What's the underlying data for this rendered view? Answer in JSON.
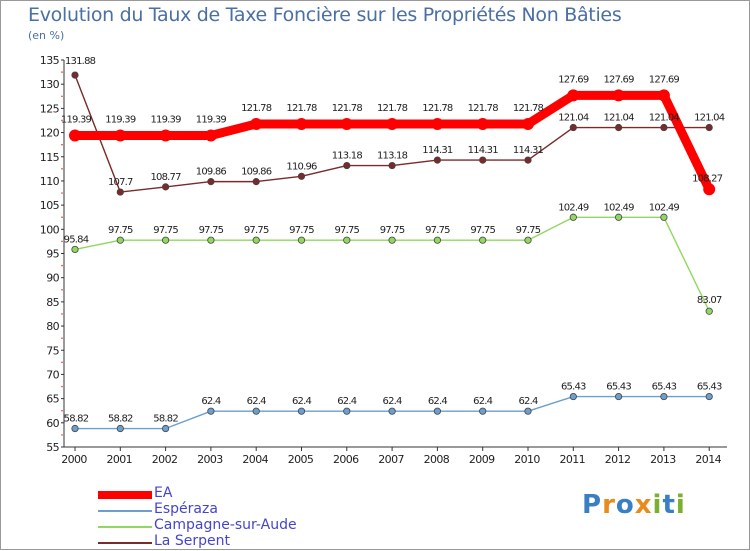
{
  "page": {
    "title": "Evolution du Taux de Taxe Foncière sur les Propriétés Non Bâties",
    "unit": "(en %)",
    "logo_letters": [
      {
        "ch": "P",
        "color": "#3a7fc4"
      },
      {
        "ch": "r",
        "color": "#e98a1d"
      },
      {
        "ch": "o",
        "color": "#3a7fc4"
      },
      {
        "ch": "x",
        "color": "#e98a1d"
      },
      {
        "ch": "i",
        "color": "#7ab030"
      },
      {
        "ch": "t",
        "color": "#3a7fc4"
      },
      {
        "ch": "i",
        "color": "#7ab030"
      }
    ]
  },
  "chart_data": {
    "type": "line",
    "title": "Evolution du Taux de Taxe Foncière sur les Propriétés Non Bâties",
    "ylabel": "(en %)",
    "xlabel": "",
    "ylim": [
      55,
      135
    ],
    "yticks": [
      "55",
      "60",
      "65",
      "70",
      "75",
      "80",
      "85",
      "90",
      "95",
      "100",
      "105",
      "110",
      "115",
      "120",
      "125",
      "130",
      "135"
    ],
    "categories": [
      "2000",
      "2001",
      "2002",
      "2003",
      "2004",
      "2005",
      "2006",
      "2007",
      "2008",
      "2009",
      "2010",
      "2011",
      "2012",
      "2013",
      "2014"
    ],
    "series": [
      {
        "name": "EA",
        "color": "#ff0000",
        "values": [
          119.39,
          119.39,
          119.39,
          119.39,
          121.78,
          121.78,
          121.78,
          121.78,
          121.78,
          121.78,
          121.78,
          127.69,
          127.69,
          127.69,
          108.27
        ],
        "labels": [
          "119.39",
          "119.39",
          "119.39",
          "119.39",
          "121.78",
          "121.78",
          "121.78",
          "121.78",
          "121.78",
          "121.78",
          "121.78",
          "127.69",
          "127.69",
          "127.69",
          "108.27"
        ]
      },
      {
        "name": "Espéraza",
        "color": "#6a9fcf",
        "values": [
          58.82,
          58.82,
          58.82,
          62.4,
          62.4,
          62.4,
          62.4,
          62.4,
          62.4,
          62.4,
          62.4,
          65.43,
          65.43,
          65.43,
          65.43
        ],
        "labels": [
          "58.82",
          "58.82",
          "58.82",
          "62.4",
          "62.4",
          "62.4",
          "62.4",
          "62.4",
          "62.4",
          "62.4",
          "62.4",
          "65.43",
          "65.43",
          "65.43",
          "65.43"
        ]
      },
      {
        "name": "Campagne-sur-Aude",
        "color": "#90d860",
        "values": [
          95.84,
          97.75,
          97.75,
          97.75,
          97.75,
          97.75,
          97.75,
          97.75,
          97.75,
          97.75,
          97.75,
          102.49,
          102.49,
          102.49,
          83.07
        ],
        "labels": [
          "95.84",
          "97.75",
          "97.75",
          "97.75",
          "97.75",
          "97.75",
          "97.75",
          "97.75",
          "97.75",
          "97.75",
          "97.75",
          "102.49",
          "102.49",
          "102.49",
          "83.07"
        ]
      },
      {
        "name": "La Serpent",
        "color": "#7a2a2a",
        "values": [
          131.88,
          107.7,
          108.77,
          109.86,
          109.86,
          110.96,
          113.18,
          113.18,
          114.31,
          114.31,
          114.31,
          121.04,
          121.04,
          121.04,
          121.04
        ],
        "labels": [
          "131.88",
          "107.7",
          "108.77",
          "109.86",
          "109.86",
          "110.96",
          "113.18",
          "113.18",
          "114.31",
          "114.31",
          "114.31",
          "121.04",
          "121.04",
          "121.04",
          "121.04"
        ]
      }
    ],
    "legend": {
      "position": "bottom-left",
      "entries": [
        "EA",
        "Espéraza",
        "Campagne-sur-Aude",
        "La Serpent"
      ]
    },
    "grid": false
  }
}
